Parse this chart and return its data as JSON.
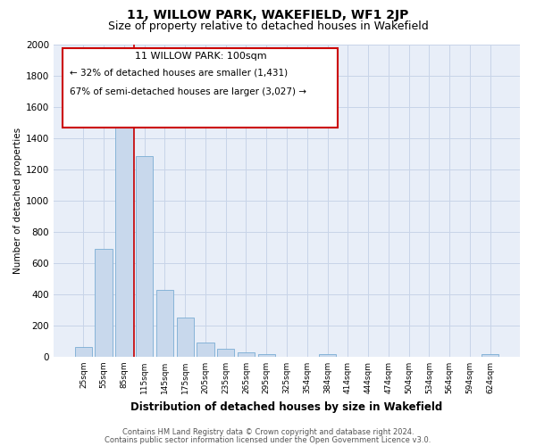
{
  "title": "11, WILLOW PARK, WAKEFIELD, WF1 2JP",
  "subtitle": "Size of property relative to detached houses in Wakefield",
  "xlabel": "Distribution of detached houses by size in Wakefield",
  "ylabel": "Number of detached properties",
  "categories": [
    "25sqm",
    "55sqm",
    "85sqm",
    "115sqm",
    "145sqm",
    "175sqm",
    "205sqm",
    "235sqm",
    "265sqm",
    "295sqm",
    "325sqm",
    "354sqm",
    "384sqm",
    "414sqm",
    "444sqm",
    "474sqm",
    "504sqm",
    "534sqm",
    "564sqm",
    "594sqm",
    "624sqm"
  ],
  "values": [
    65,
    690,
    1640,
    1285,
    430,
    250,
    90,
    50,
    30,
    20,
    0,
    0,
    15,
    0,
    0,
    0,
    0,
    0,
    0,
    0,
    15
  ],
  "bar_color": "#c8d8ec",
  "bar_edge_color": "#7aadd4",
  "annotation_title": "11 WILLOW PARK: 100sqm",
  "annotation_line1": "← 32% of detached houses are smaller (1,431)",
  "annotation_line2": "67% of semi-detached houses are larger (3,027) →",
  "marker_color": "#cc0000",
  "ylim": [
    0,
    2000
  ],
  "yticks": [
    0,
    200,
    400,
    600,
    800,
    1000,
    1200,
    1400,
    1600,
    1800,
    2000
  ],
  "footnote1": "Contains HM Land Registry data © Crown copyright and database right 2024.",
  "footnote2": "Contains public sector information licensed under the Open Government Licence v3.0.",
  "bg_color": "#ffffff",
  "axes_bg_color": "#e8eef8",
  "grid_color": "#c8d4e8",
  "title_fontsize": 10,
  "subtitle_fontsize": 9
}
